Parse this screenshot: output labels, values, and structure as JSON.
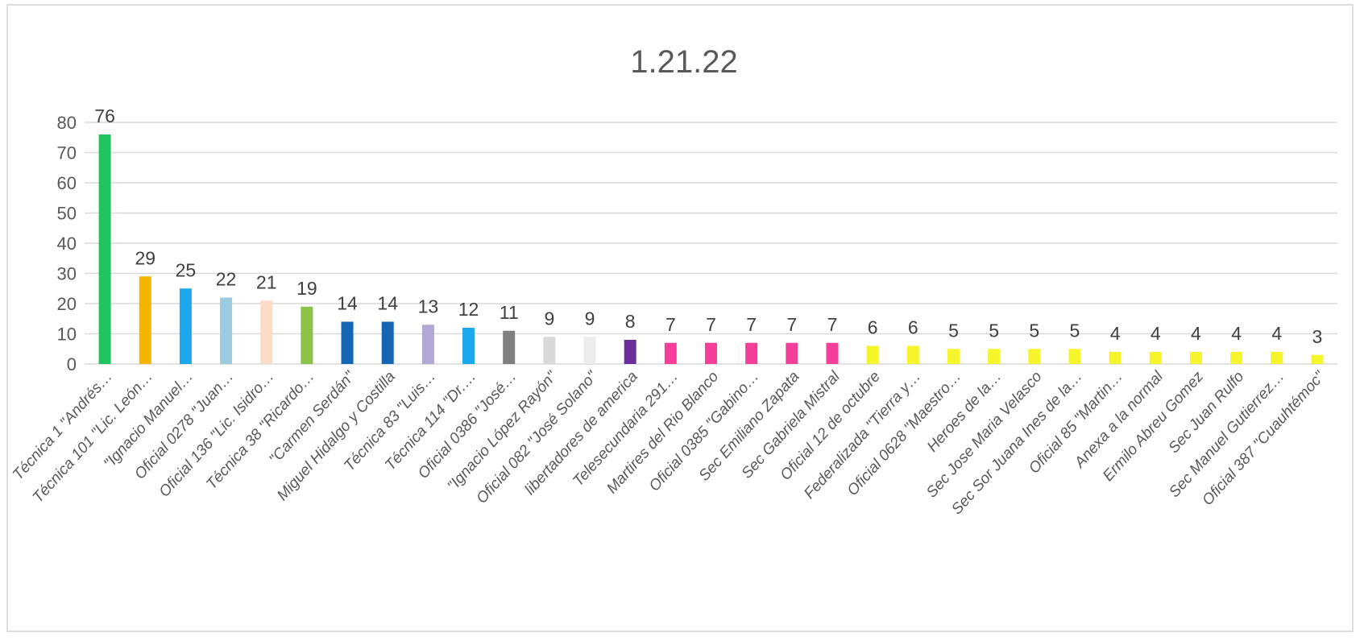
{
  "chart_data": {
    "type": "bar",
    "title": "1.21.22",
    "xlabel": "",
    "ylabel": "",
    "ylim": [
      0,
      80
    ],
    "yticks": [
      0,
      10,
      20,
      30,
      40,
      50,
      60,
      70,
      80
    ],
    "grid": true,
    "legend": "none",
    "categories": [
      "Técnica 1 \"Andrés…",
      "Técnica 101 \"Lic. León…",
      "\"Ignacio Manuel…",
      "Oficial 0278 \"Juan…",
      "Oficial 136 \"Lic. Isidro…",
      "Técnica 38 \"Ricardo…",
      "\"Carmen Serdán\"",
      "Miguel Hidalgo y Costilla",
      "Técnica 83 \"Luis…",
      "Técnica 114 \"Dr.…",
      "Oficial 0386 \"José…",
      "\"Ignacio López Rayón\"",
      "Oficial 082 \"José Solano\"",
      "libertadores de america",
      "Telesecundaria 291…",
      "Martires del Rio Blanco",
      "Oficial 0385 \"Gabino…",
      "Sec Emiliano Zapata",
      "Sec Gabriela Mistral",
      "Oficial 12 de octubre",
      "Federalizada \"Tierra y…",
      "Oficial 0628 \"Maestro…",
      "Heroes de la…",
      "Sec Jose Maria Velasco",
      "Sec Sor Juana Ines de la…",
      "Oficial 85 \"Martin…",
      "Anexa a la normal",
      "Ermilo Abreu Gomez",
      "Sec Juan Rulfo",
      "Sec Manuel Gutierrez…",
      "Oficial 387 \"Cuauhtémoc\""
    ],
    "values": [
      76,
      29,
      25,
      22,
      21,
      19,
      14,
      14,
      13,
      12,
      11,
      9,
      9,
      8,
      7,
      7,
      7,
      7,
      7,
      6,
      6,
      5,
      5,
      5,
      5,
      4,
      4,
      4,
      4,
      4,
      3
    ],
    "colors": [
      "#1fc45f",
      "#f5b400",
      "#1ba8ec",
      "#9ccbe0",
      "#fcdcc6",
      "#8bc34a",
      "#1565b5",
      "#1565b5",
      "#b2a7d2",
      "#1ba8ec",
      "#7f7f7f",
      "#d9d9d9",
      "#ececec",
      "#6a2d9a",
      "#f53e9a",
      "#f53e9a",
      "#f53e9a",
      "#f53e9a",
      "#f53e9a",
      "#f6f52c",
      "#f6f52c",
      "#f6f52c",
      "#f6f52c",
      "#f6f52c",
      "#f6f52c",
      "#f6f52c",
      "#f6f52c",
      "#f6f52c",
      "#f6f52c",
      "#f6f52c",
      "#f6f52c"
    ],
    "gridline_color": "#d9d9d9",
    "axis_text_color": "#595959"
  }
}
